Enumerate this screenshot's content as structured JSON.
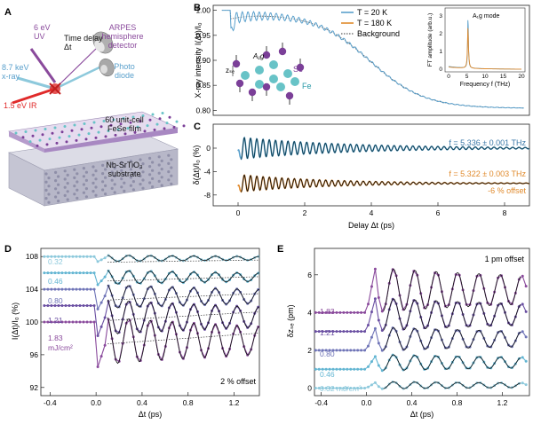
{
  "panels": {
    "A": "A",
    "B": "B",
    "C": "C",
    "D": "D",
    "E": "E"
  },
  "panelA": {
    "uv": "6 eV\nUV",
    "xray": "8.7 keV\nx-ray",
    "ir": "1.5 eV IR",
    "delay": "Time delay\nΔt",
    "arpes": "ARPES\nhemisphere\ndetector",
    "photodiode": "Photo\ndiode",
    "film": "60 unit-cell\nFeSe film",
    "substrate": "Nb-SrTiO₃\nsubstrate"
  },
  "panelB": {
    "ylabel": "X-ray intensity I(Δt)/I₀",
    "yticks": [
      "1.00",
      "0.95",
      "0.90",
      "0.85",
      "0.80"
    ],
    "legend": [
      "T = 20 K",
      "T = 180 K",
      "Background"
    ],
    "atoms": {
      "se": "Se",
      "fe": "Fe",
      "zse": "zₛₑ",
      "a1g": "A₁g"
    },
    "inset": {
      "ylabel": "FT amplitude (arb.u.)",
      "xlabel": "Frequency f (THz)",
      "mode": "A₁g mode",
      "xticks": [
        "0",
        "5",
        "10",
        "15",
        "20"
      ],
      "yticks": [
        "0",
        "1",
        "2",
        "3"
      ]
    }
  },
  "panelC": {
    "ylabel": "δ(Δt)/I₀ (%)",
    "yticks": [
      "0",
      "-4",
      "-8"
    ],
    "xticks": [
      "0",
      "2",
      "4",
      "6",
      "8"
    ],
    "xlabel": "Delay Δt (ps)",
    "f20": "f = 5.336 ± 0.001 THz",
    "f180": "f = 5.322 ± 0.003 THz",
    "offset": "-6 % offset"
  },
  "panelD": {
    "ylabel": "I(Δt)/I₀ (%)",
    "yticks": [
      "108",
      "104",
      "100",
      "96",
      "92"
    ],
    "xticks": [
      "-0.4",
      "0.0",
      "0.4",
      "0.8",
      "1.2"
    ],
    "xlabel": "Δt (ps)",
    "fluences": [
      "0.32",
      "0.46",
      "0.80",
      "1.21",
      "1.83",
      "mJ/cm²"
    ],
    "offset": "2 % offset"
  },
  "panelE": {
    "ylabel": "δzₛₑ (pm)",
    "yticks": [
      "6",
      "4",
      "2",
      "0"
    ],
    "xticks": [
      "-0.4",
      "0.0",
      "0.4",
      "0.8",
      "1.2"
    ],
    "xlabel": "Δt (ps)",
    "fluences": [
      "1.83",
      "1.21",
      "0.80",
      "0.46",
      "0.32 mJ/cm²"
    ],
    "offset": "1 pm offset"
  },
  "colors": {
    "blue20": "#5aa0cc",
    "dark20": "#0d3b4c",
    "orange180": "#e08a2c",
    "f1": "#8dc9dc",
    "f2": "#62b5d2",
    "f3": "#6f74b7",
    "f4": "#6a4fa2",
    "f5": "#8a4a9c",
    "se": "#7b3f98",
    "fe": "#68c3c7"
  }
}
